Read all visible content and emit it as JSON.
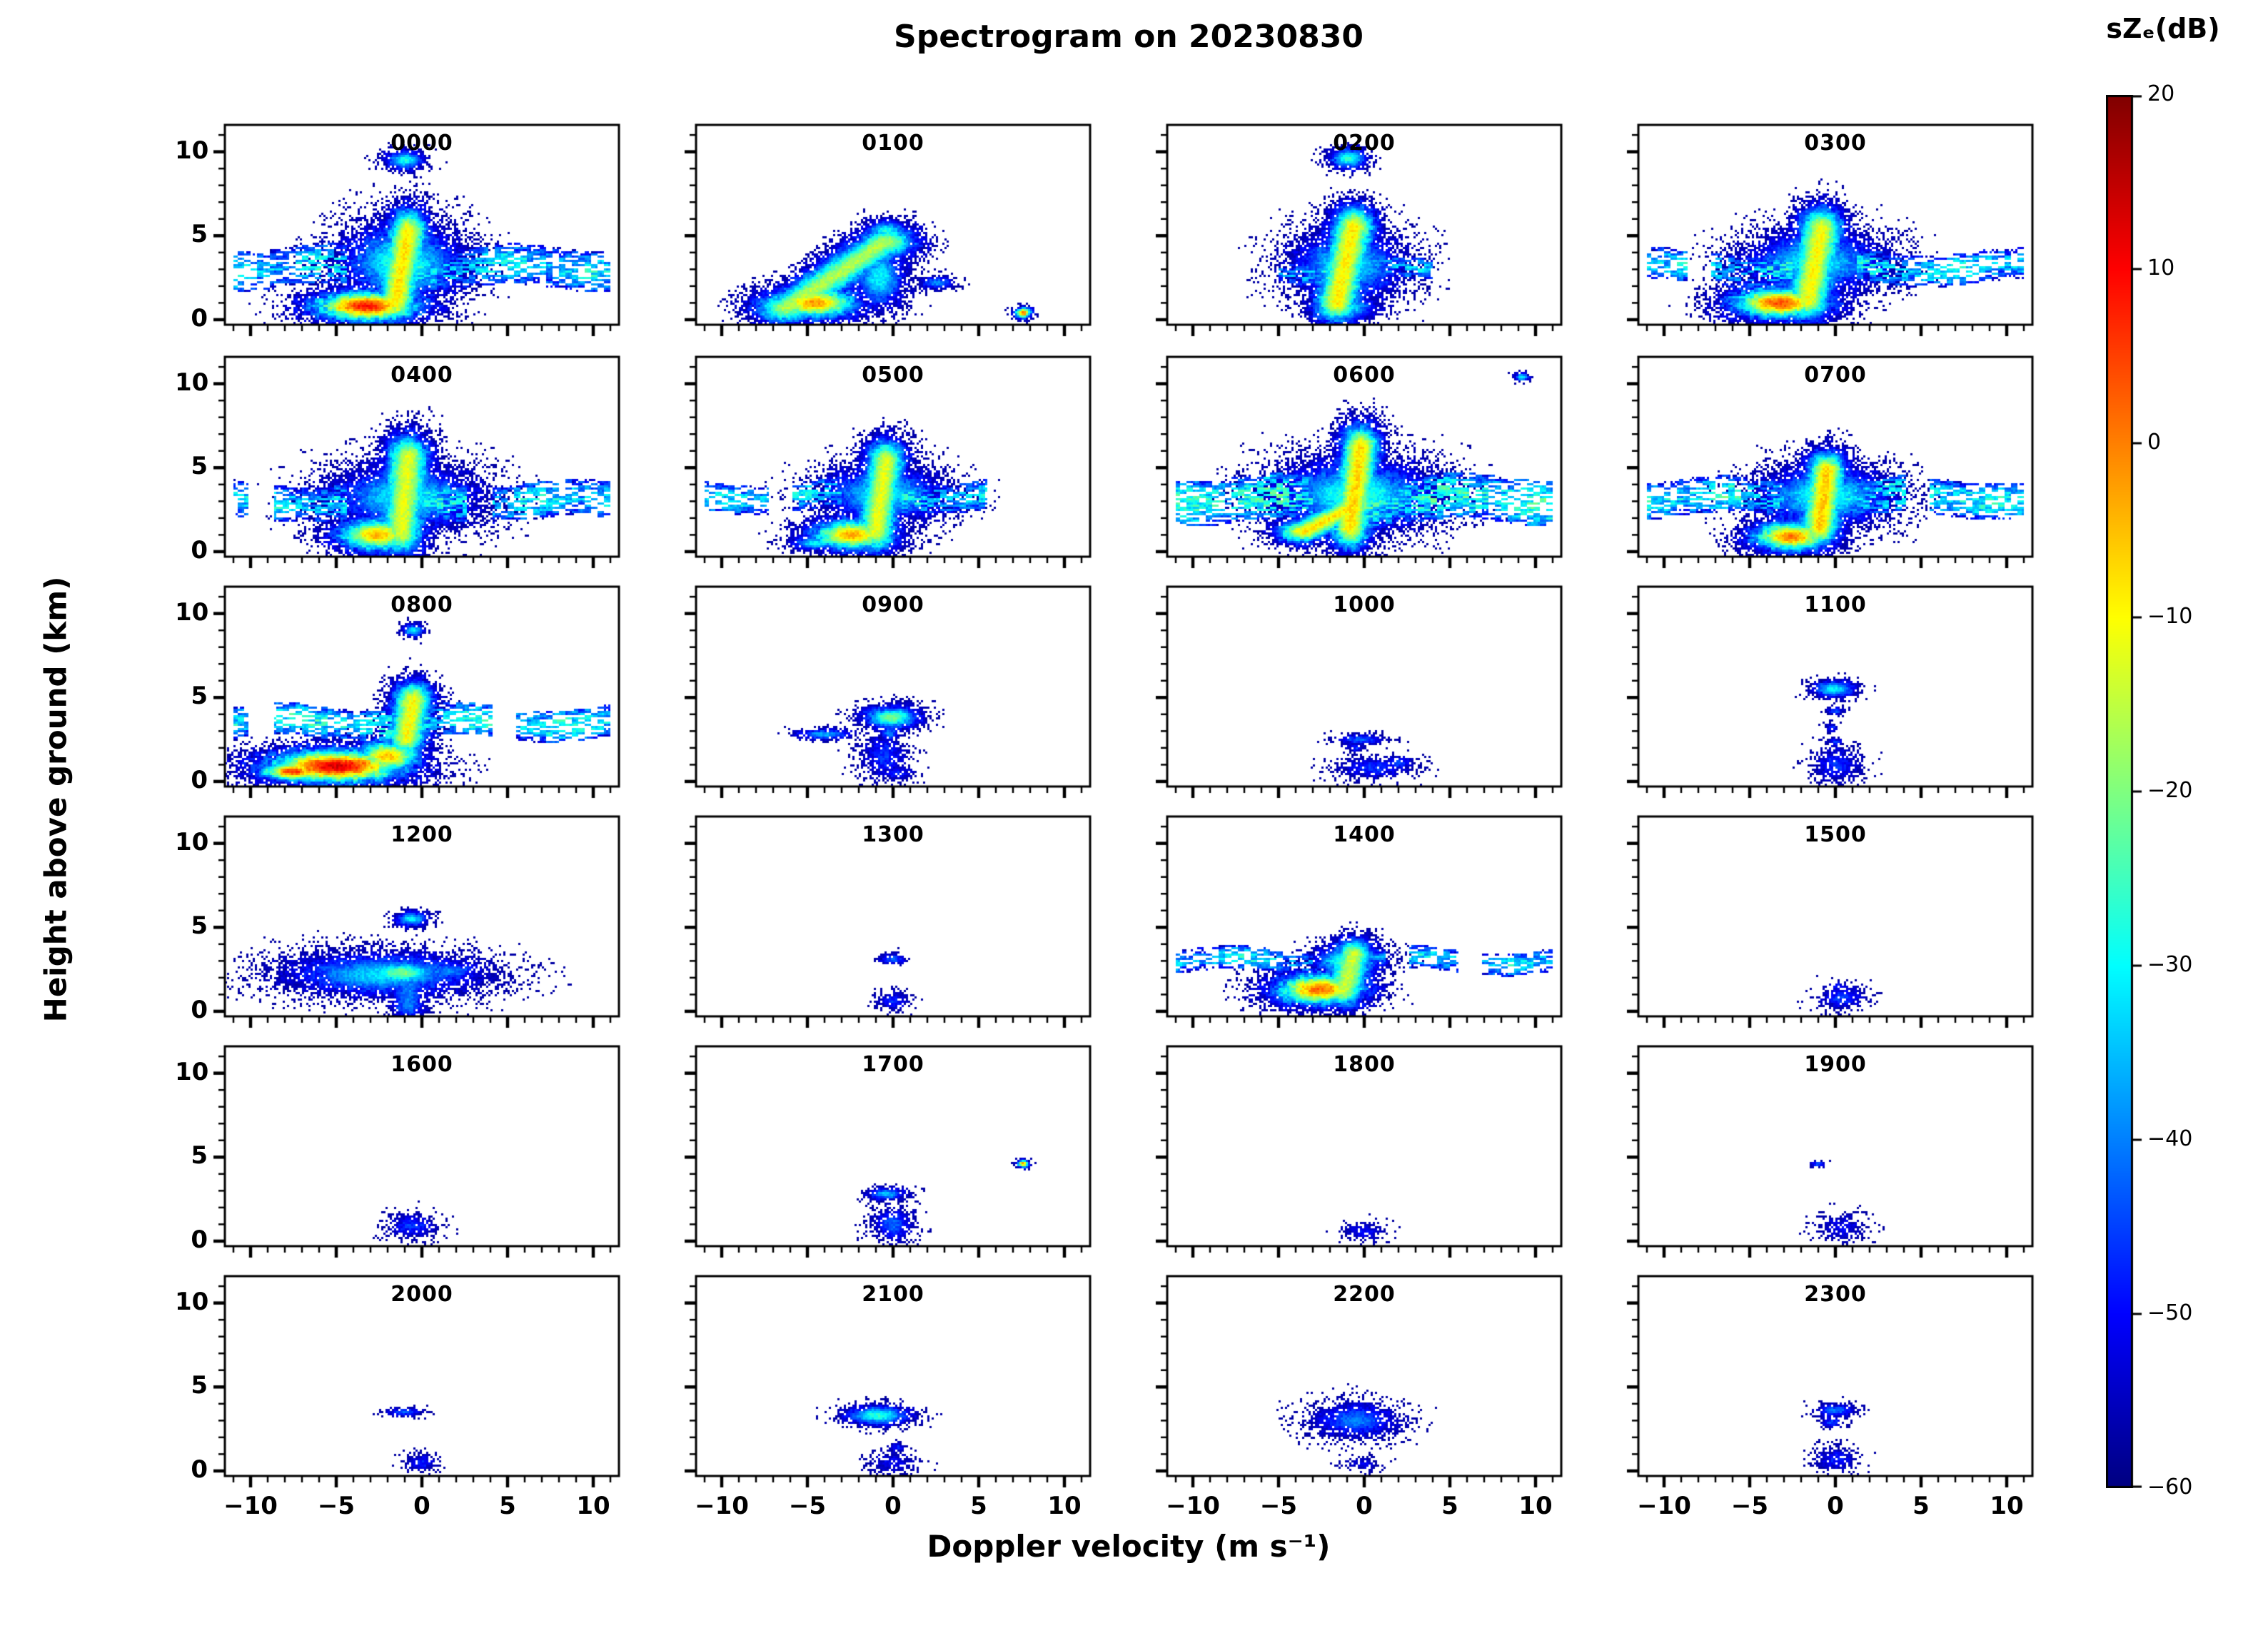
{
  "chart_data": {
    "type": "heatmap",
    "subtype": "doppler-velocity-spectrogram-grid",
    "title": "Spectrogram on 20230830",
    "xlabel": "Doppler velocity (m s⁻¹)",
    "ylabel": "Height above ground (km)",
    "xlim": [
      -11.5,
      11.5
    ],
    "ylim": [
      -0.3,
      11.6
    ],
    "x_tick_values": [
      -10,
      -5,
      0,
      5,
      10
    ],
    "x_tick_labels": [
      "−10",
      "−5",
      "0",
      "5",
      "10"
    ],
    "y_tick_values": [
      10,
      5,
      0
    ],
    "y_tick_labels": [
      "10",
      "5",
      "0"
    ],
    "grid": {
      "rows": 6,
      "cols": 4
    },
    "colorbar": {
      "label": "sZₑ(dB)",
      "units": "dB",
      "min": -60,
      "max": 20,
      "tick_values": [
        20,
        10,
        0,
        -10,
        -20,
        -30,
        -40,
        -50,
        -60
      ],
      "tick_labels": [
        "20",
        "10",
        "0",
        "−10",
        "−20",
        "−30",
        "−40",
        "−50",
        "−60"
      ],
      "colormap": "jet"
    },
    "panels": [
      {
        "time": "0000",
        "features": [
          {
            "t": "band",
            "y": 3.1,
            "h": 1.8,
            "x0": -11,
            "x1": 11,
            "v": -34
          },
          {
            "t": "blob",
            "x": -1.2,
            "y": 3.4,
            "rx": 2.6,
            "ry": 1.8,
            "v": -26
          },
          {
            "t": "seg",
            "x0": -1.5,
            "y0": 1.2,
            "x1": -0.8,
            "y1": 5.2,
            "rx": 1.0,
            "ry": 1.2,
            "v": -8
          },
          {
            "t": "blob",
            "x": -3.2,
            "y": 0.8,
            "rx": 2.6,
            "ry": 0.75,
            "v": 9
          },
          {
            "t": "blob",
            "x": -1.0,
            "y": 9.5,
            "rx": 0.9,
            "ry": 0.45,
            "v": -28
          },
          {
            "t": "blob",
            "x": -0.6,
            "y": 5.6,
            "rx": 0.9,
            "ry": 0.5,
            "v": -25
          }
        ]
      },
      {
        "time": "0100",
        "features": [
          {
            "t": "seg",
            "x0": -6.2,
            "y0": 0.7,
            "x1": -0.5,
            "y1": 4.6,
            "rx": 1.6,
            "ry": 0.8,
            "v": -16
          },
          {
            "t": "blob",
            "x": -4.6,
            "y": 1.0,
            "rx": 2.2,
            "ry": 0.8,
            "v": -2
          },
          {
            "t": "blob",
            "x": -0.4,
            "y": 5.3,
            "rx": 1.0,
            "ry": 0.5,
            "v": -28
          },
          {
            "t": "blob",
            "x": -6.5,
            "y": 0.5,
            "rx": 1.5,
            "ry": 0.4,
            "v": -30
          },
          {
            "t": "blob",
            "x": -0.8,
            "y": 2.5,
            "rx": 1.2,
            "ry": 1.4,
            "v": -30
          },
          {
            "t": "blob",
            "x": 2.6,
            "y": 2.2,
            "rx": 0.8,
            "ry": 0.3,
            "v": -38
          },
          {
            "t": "blob",
            "x": 7.6,
            "y": 0.4,
            "rx": 0.4,
            "ry": 0.25,
            "v": 2
          }
        ]
      },
      {
        "time": "0200",
        "features": [
          {
            "t": "seg",
            "x0": -1.6,
            "y0": 1.0,
            "x1": -0.6,
            "y1": 5.6,
            "rx": 1.1,
            "ry": 1.0,
            "v": -9
          },
          {
            "t": "blob",
            "x": -1.0,
            "y": 3.2,
            "rx": 2.4,
            "ry": 1.6,
            "v": -30
          },
          {
            "t": "band",
            "y": 2.9,
            "h": 0.9,
            "x0": -5,
            "x1": 4,
            "v": -36
          },
          {
            "t": "blob",
            "x": -0.9,
            "y": 9.6,
            "rx": 0.9,
            "ry": 0.5,
            "v": -26
          },
          {
            "t": "blob",
            "x": -1.2,
            "y": 0.7,
            "rx": 1.6,
            "ry": 0.55,
            "v": -30
          },
          {
            "t": "blob",
            "x": -0.7,
            "y": 6.3,
            "rx": 0.8,
            "ry": 0.5,
            "v": -30
          }
        ]
      },
      {
        "time": "0300",
        "features": [
          {
            "t": "band",
            "y": 3.1,
            "h": 1.4,
            "x0": -11,
            "x1": 11,
            "v": -33
          },
          {
            "t": "seg",
            "x0": -1.6,
            "y0": 1.2,
            "x1": -0.8,
            "y1": 5.4,
            "rx": 1.1,
            "ry": 1.1,
            "v": -10
          },
          {
            "t": "blob",
            "x": -3.2,
            "y": 1.0,
            "rx": 2.4,
            "ry": 0.8,
            "v": 4
          },
          {
            "t": "blob",
            "x": -1.0,
            "y": 6.1,
            "rx": 1.0,
            "ry": 0.5,
            "v": -26
          },
          {
            "t": "blob",
            "x": -1.2,
            "y": 3.4,
            "rx": 3.0,
            "ry": 1.4,
            "v": -30
          }
        ]
      },
      {
        "time": "0400",
        "features": [
          {
            "t": "band",
            "y": 3.0,
            "h": 1.6,
            "x0": -11,
            "x1": 11,
            "v": -33
          },
          {
            "t": "seg",
            "x0": -1.2,
            "y0": 1.2,
            "x1": -0.8,
            "y1": 5.6,
            "rx": 1.1,
            "ry": 1.2,
            "v": -12
          },
          {
            "t": "blob",
            "x": -2.6,
            "y": 1.0,
            "rx": 2.0,
            "ry": 0.85,
            "v": -4
          },
          {
            "t": "blob",
            "x": -1.0,
            "y": 3.2,
            "rx": 3.2,
            "ry": 1.5,
            "v": -30
          },
          {
            "t": "blob",
            "x": -0.9,
            "y": 6.0,
            "rx": 0.8,
            "ry": 0.5,
            "v": -28
          }
        ]
      },
      {
        "time": "0500",
        "features": [
          {
            "t": "band",
            "y": 3.3,
            "h": 1.3,
            "x0": -11,
            "x1": 11,
            "v": -34
          },
          {
            "t": "seg",
            "x0": -1.0,
            "y0": 1.2,
            "x1": -0.4,
            "y1": 5.4,
            "rx": 1.0,
            "ry": 1.1,
            "v": -12
          },
          {
            "t": "blob",
            "x": -2.4,
            "y": 1.0,
            "rx": 2.0,
            "ry": 0.8,
            "v": -3
          },
          {
            "t": "blob",
            "x": -0.6,
            "y": 3.4,
            "rx": 2.6,
            "ry": 1.3,
            "v": -30
          },
          {
            "t": "blob",
            "x": -4.5,
            "y": 0.5,
            "rx": 1.2,
            "ry": 0.35,
            "v": -30
          }
        ]
      },
      {
        "time": "0600",
        "features": [
          {
            "t": "band",
            "y": 3.1,
            "h": 2.0,
            "x0": -11,
            "x1": 11,
            "v": -29
          },
          {
            "t": "seg",
            "x0": -0.8,
            "y0": 1.5,
            "x1": -0.2,
            "y1": 6.2,
            "rx": 1.0,
            "ry": 1.2,
            "v": -7
          },
          {
            "t": "seg",
            "x0": -3.5,
            "y0": 1.2,
            "x1": -0.8,
            "y1": 2.6,
            "rx": 1.4,
            "ry": 0.6,
            "v": -8
          },
          {
            "t": "blob",
            "x": -0.5,
            "y": 3.4,
            "rx": 3.4,
            "ry": 1.6,
            "v": -26
          },
          {
            "t": "blob",
            "x": 9.2,
            "y": 10.4,
            "rx": 0.35,
            "ry": 0.2,
            "v": -30
          },
          {
            "t": "blob",
            "x": 0.3,
            "y": 6.6,
            "rx": 0.7,
            "ry": 0.4,
            "v": -28
          }
        ]
      },
      {
        "time": "0700",
        "features": [
          {
            "t": "band",
            "y": 3.2,
            "h": 1.6,
            "x0": -11,
            "x1": 11,
            "v": -31
          },
          {
            "t": "seg",
            "x0": -0.9,
            "y0": 1.5,
            "x1": -0.5,
            "y1": 4.8,
            "rx": 1.0,
            "ry": 1.0,
            "v": -6
          },
          {
            "t": "blob",
            "x": -2.6,
            "y": 0.9,
            "rx": 1.9,
            "ry": 0.75,
            "v": 1
          },
          {
            "t": "blob",
            "x": -0.6,
            "y": 3.3,
            "rx": 2.8,
            "ry": 1.3,
            "v": -26
          },
          {
            "t": "blob",
            "x": -0.7,
            "y": 5.4,
            "rx": 0.9,
            "ry": 0.5,
            "v": -26
          }
        ]
      },
      {
        "time": "0800",
        "features": [
          {
            "t": "band",
            "y": 3.5,
            "h": 1.4,
            "x0": -11,
            "x1": 11,
            "v": -31
          },
          {
            "t": "seg",
            "x0": -0.9,
            "y0": 2.6,
            "x1": -0.5,
            "y1": 4.9,
            "rx": 1.0,
            "ry": 0.9,
            "v": -10
          },
          {
            "t": "blob",
            "x": -5.0,
            "y": 0.9,
            "rx": 3.4,
            "ry": 0.85,
            "v": 13
          },
          {
            "t": "blob",
            "x": -7.5,
            "y": 0.6,
            "rx": 1.6,
            "ry": 0.5,
            "v": 6
          },
          {
            "t": "blob",
            "x": -2.0,
            "y": 1.5,
            "rx": 1.6,
            "ry": 0.8,
            "v": -4
          },
          {
            "t": "blob",
            "x": -0.5,
            "y": 9.0,
            "rx": 0.5,
            "ry": 0.3,
            "v": -30
          }
        ]
      },
      {
        "time": "0900",
        "features": [
          {
            "t": "blob",
            "x": -0.1,
            "y": 3.8,
            "rx": 1.3,
            "ry": 0.55,
            "v": -20
          },
          {
            "t": "blob",
            "x": -0.5,
            "y": 1.5,
            "rx": 1.0,
            "ry": 1.1,
            "v": -46
          },
          {
            "t": "blob",
            "x": -4.0,
            "y": 2.8,
            "rx": 1.3,
            "ry": 0.25,
            "v": -36
          },
          {
            "t": "blob",
            "x": 0.2,
            "y": 0.5,
            "rx": 0.8,
            "ry": 0.35,
            "v": -48
          },
          {
            "t": "blob",
            "x": -0.2,
            "y": 2.9,
            "rx": 0.5,
            "ry": 0.4,
            "v": -40
          }
        ]
      },
      {
        "time": "1000",
        "features": [
          {
            "t": "blob",
            "x": -0.2,
            "y": 2.5,
            "rx": 1.1,
            "ry": 0.25,
            "v": -42
          },
          {
            "t": "blob",
            "x": 0.6,
            "y": 0.8,
            "rx": 1.6,
            "ry": 0.5,
            "v": -46
          },
          {
            "t": "blob",
            "x": 2.0,
            "y": 1.1,
            "rx": 0.7,
            "ry": 0.3,
            "v": -44
          },
          {
            "t": "blob",
            "x": -0.5,
            "y": 2.0,
            "rx": 0.4,
            "ry": 0.2,
            "v": -46
          }
        ]
      },
      {
        "time": "1100",
        "features": [
          {
            "t": "blob",
            "x": -0.1,
            "y": 5.5,
            "rx": 1.0,
            "ry": 0.4,
            "v": -30
          },
          {
            "t": "blob",
            "x": 0.0,
            "y": 4.2,
            "rx": 0.4,
            "ry": 0.2,
            "v": -44
          },
          {
            "t": "blob",
            "x": 0.1,
            "y": 1.0,
            "rx": 1.0,
            "ry": 0.8,
            "v": -46
          },
          {
            "t": "blob",
            "x": 0.0,
            "y": 2.3,
            "rx": 0.4,
            "ry": 0.25,
            "v": -46
          },
          {
            "t": "blob",
            "x": -0.2,
            "y": 3.2,
            "rx": 0.3,
            "ry": 0.2,
            "v": -46
          }
        ]
      },
      {
        "time": "1200",
        "features": [
          {
            "t": "blob",
            "x": -2.2,
            "y": 2.2,
            "rx": 4.2,
            "ry": 1.0,
            "v": -32
          },
          {
            "t": "blob",
            "x": -1.2,
            "y": 2.3,
            "rx": 1.8,
            "ry": 0.6,
            "v": -20
          },
          {
            "t": "blob",
            "x": -0.6,
            "y": 5.5,
            "rx": 0.8,
            "ry": 0.35,
            "v": -30
          },
          {
            "t": "seg",
            "x0": -0.8,
            "y0": 0.3,
            "x1": -0.8,
            "y1": 1.6,
            "rx": 0.8,
            "ry": 0.6,
            "v": -40
          },
          {
            "t": "blob",
            "x": 1.5,
            "y": 2.4,
            "rx": 1.6,
            "ry": 0.5,
            "v": -40
          }
        ]
      },
      {
        "time": "1300",
        "features": [
          {
            "t": "blob",
            "x": 0.0,
            "y": 3.1,
            "rx": 0.6,
            "ry": 0.25,
            "v": -42
          },
          {
            "t": "blob",
            "x": 0.0,
            "y": 0.6,
            "rx": 0.7,
            "ry": 0.4,
            "v": -46
          }
        ]
      },
      {
        "time": "1400",
        "features": [
          {
            "t": "band",
            "y": 3.0,
            "h": 1.0,
            "x0": -11,
            "x1": 11,
            "v": -35
          },
          {
            "t": "blob",
            "x": -2.6,
            "y": 1.3,
            "rx": 2.2,
            "ry": 0.8,
            "v": 2
          },
          {
            "t": "seg",
            "x0": -1.2,
            "y0": 1.2,
            "x1": -0.6,
            "y1": 3.4,
            "rx": 1.0,
            "ry": 0.8,
            "v": -14
          },
          {
            "t": "blob",
            "x": -1.0,
            "y": 3.0,
            "rx": 1.6,
            "ry": 0.7,
            "v": -25
          },
          {
            "t": "blob",
            "x": -1.0,
            "y": 0.4,
            "rx": 1.2,
            "ry": 0.3,
            "v": -40
          }
        ]
      },
      {
        "time": "1500",
        "features": [
          {
            "t": "blob",
            "x": 0.4,
            "y": 0.8,
            "rx": 1.0,
            "ry": 0.55,
            "v": -46
          },
          {
            "t": "blob",
            "x": 0.2,
            "y": 1.5,
            "rx": 0.4,
            "ry": 0.2,
            "v": -48
          }
        ]
      },
      {
        "time": "1600",
        "features": [
          {
            "t": "blob",
            "x": -0.6,
            "y": 0.9,
            "rx": 1.1,
            "ry": 0.55,
            "v": -46
          }
        ]
      },
      {
        "time": "1700",
        "features": [
          {
            "t": "blob",
            "x": 0.0,
            "y": 1.0,
            "rx": 0.9,
            "ry": 0.8,
            "v": -42
          },
          {
            "t": "blob",
            "x": -0.4,
            "y": 2.8,
            "rx": 0.9,
            "ry": 0.3,
            "v": -34
          },
          {
            "t": "blob",
            "x": 7.6,
            "y": 4.6,
            "rx": 0.3,
            "ry": 0.18,
            "v": 0
          }
        ]
      },
      {
        "time": "1800",
        "features": [
          {
            "t": "blob",
            "x": 0.0,
            "y": 0.6,
            "rx": 0.9,
            "ry": 0.45,
            "v": -50
          }
        ]
      },
      {
        "time": "1900",
        "features": [
          {
            "t": "blob",
            "x": 0.4,
            "y": 0.8,
            "rx": 1.0,
            "ry": 0.6,
            "v": -50
          },
          {
            "t": "blob",
            "x": -1.0,
            "y": 4.6,
            "rx": 0.3,
            "ry": 0.15,
            "v": -40
          }
        ]
      },
      {
        "time": "2000",
        "features": [
          {
            "t": "blob",
            "x": -1.0,
            "y": 3.5,
            "rx": 0.8,
            "ry": 0.2,
            "v": -42
          },
          {
            "t": "blob",
            "x": 0.0,
            "y": 0.5,
            "rx": 0.7,
            "ry": 0.4,
            "v": -48
          }
        ]
      },
      {
        "time": "2100",
        "features": [
          {
            "t": "blob",
            "x": -0.9,
            "y": 3.3,
            "rx": 1.5,
            "ry": 0.45,
            "v": -26
          },
          {
            "t": "blob",
            "x": 0.0,
            "y": 0.5,
            "rx": 1.0,
            "ry": 0.5,
            "v": -50
          },
          {
            "t": "blob",
            "x": 0.2,
            "y": 1.4,
            "rx": 0.4,
            "ry": 0.2,
            "v": -48
          }
        ]
      },
      {
        "time": "2200",
        "features": [
          {
            "t": "blob",
            "x": -0.5,
            "y": 3.0,
            "rx": 1.9,
            "ry": 0.8,
            "v": -40
          },
          {
            "t": "blob",
            "x": 0.0,
            "y": 0.4,
            "rx": 0.8,
            "ry": 0.3,
            "v": -52
          }
        ]
      },
      {
        "time": "2300",
        "features": [
          {
            "t": "blob",
            "x": 0.0,
            "y": 3.6,
            "rx": 0.9,
            "ry": 0.3,
            "v": -40
          },
          {
            "t": "blob",
            "x": -0.2,
            "y": 2.9,
            "rx": 0.5,
            "ry": 0.25,
            "v": -44
          },
          {
            "t": "blob",
            "x": 0.0,
            "y": 0.7,
            "rx": 0.9,
            "ry": 0.55,
            "v": -48
          }
        ]
      }
    ]
  }
}
